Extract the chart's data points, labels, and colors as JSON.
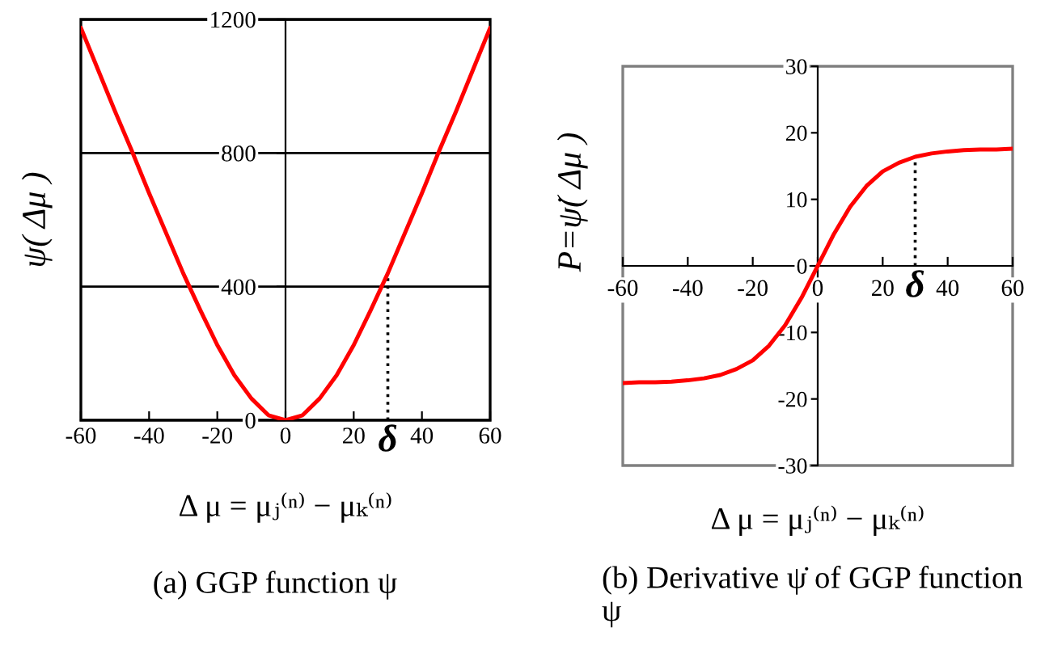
{
  "chart_data": [
    {
      "type": "line",
      "xlabel": "Δ μ = μⱼ⁽ⁿ⁾ − μₖ⁽ⁿ⁾",
      "ylabel": "ψ( Δμ )",
      "annotations": [
        "(a) GGP function ψ"
      ],
      "x": [
        -60,
        -55,
        -50,
        -45,
        -40,
        -35,
        -30,
        -25,
        -20,
        -15,
        -10,
        -5,
        0,
        5,
        10,
        15,
        20,
        25,
        30,
        35,
        40,
        45,
        50,
        55,
        60
      ],
      "series": [
        {
          "color": "#ff0000",
          "values": [
            1175,
            1050,
            925,
            805,
            680,
            560,
            440,
            330,
            225,
            135,
            65,
            15,
            0,
            15,
            65,
            135,
            225,
            330,
            440,
            560,
            680,
            805,
            925,
            1050,
            1175
          ]
        }
      ],
      "xlim": [
        -60,
        60
      ],
      "ylim": [
        0,
        1200
      ],
      "xticks": [
        -60,
        -40,
        -20,
        0,
        20,
        40,
        60
      ],
      "yticks": [
        0,
        400,
        800,
        1200
      ],
      "grid": "y",
      "ref_lines": [
        {
          "axis": "x",
          "value": 30,
          "label": "δ",
          "line_style": "dotted",
          "color": "#000000"
        }
      ]
    },
    {
      "type": "line",
      "xlabel": "Δ μ = μⱼ⁽ⁿ⁾ − μₖ⁽ⁿ⁾",
      "ylabel": "P=ψ̇( Δμ )",
      "annotations": [
        "(b) Derivative ψ̇ of GGP function ψ"
      ],
      "x": [
        -60,
        -55,
        -50,
        -45,
        -40,
        -35,
        -30,
        -25,
        -20,
        -15,
        -10,
        -5,
        0,
        5,
        10,
        15,
        20,
        25,
        30,
        35,
        40,
        45,
        50,
        55,
        60
      ],
      "series": [
        {
          "color": "#ff0000",
          "values": [
            -17.6,
            -17.5,
            -17.5,
            -17.4,
            -17.2,
            -16.9,
            -16.4,
            -15.5,
            -14.2,
            -12.0,
            -8.9,
            -4.8,
            0,
            4.8,
            8.9,
            12.0,
            14.2,
            15.5,
            16.4,
            16.9,
            17.2,
            17.4,
            17.5,
            17.5,
            17.6
          ]
        }
      ],
      "xlim": [
        -60,
        60
      ],
      "ylim": [
        -30,
        30
      ],
      "xticks": [
        -60,
        -40,
        -20,
        0,
        20,
        40,
        60
      ],
      "yticks": [
        -30,
        -20,
        -10,
        0,
        10,
        20,
        30
      ],
      "ref_lines": [
        {
          "axis": "x",
          "value": 30,
          "label": "δ",
          "line_style": "dotted",
          "color": "#000000"
        }
      ]
    }
  ]
}
